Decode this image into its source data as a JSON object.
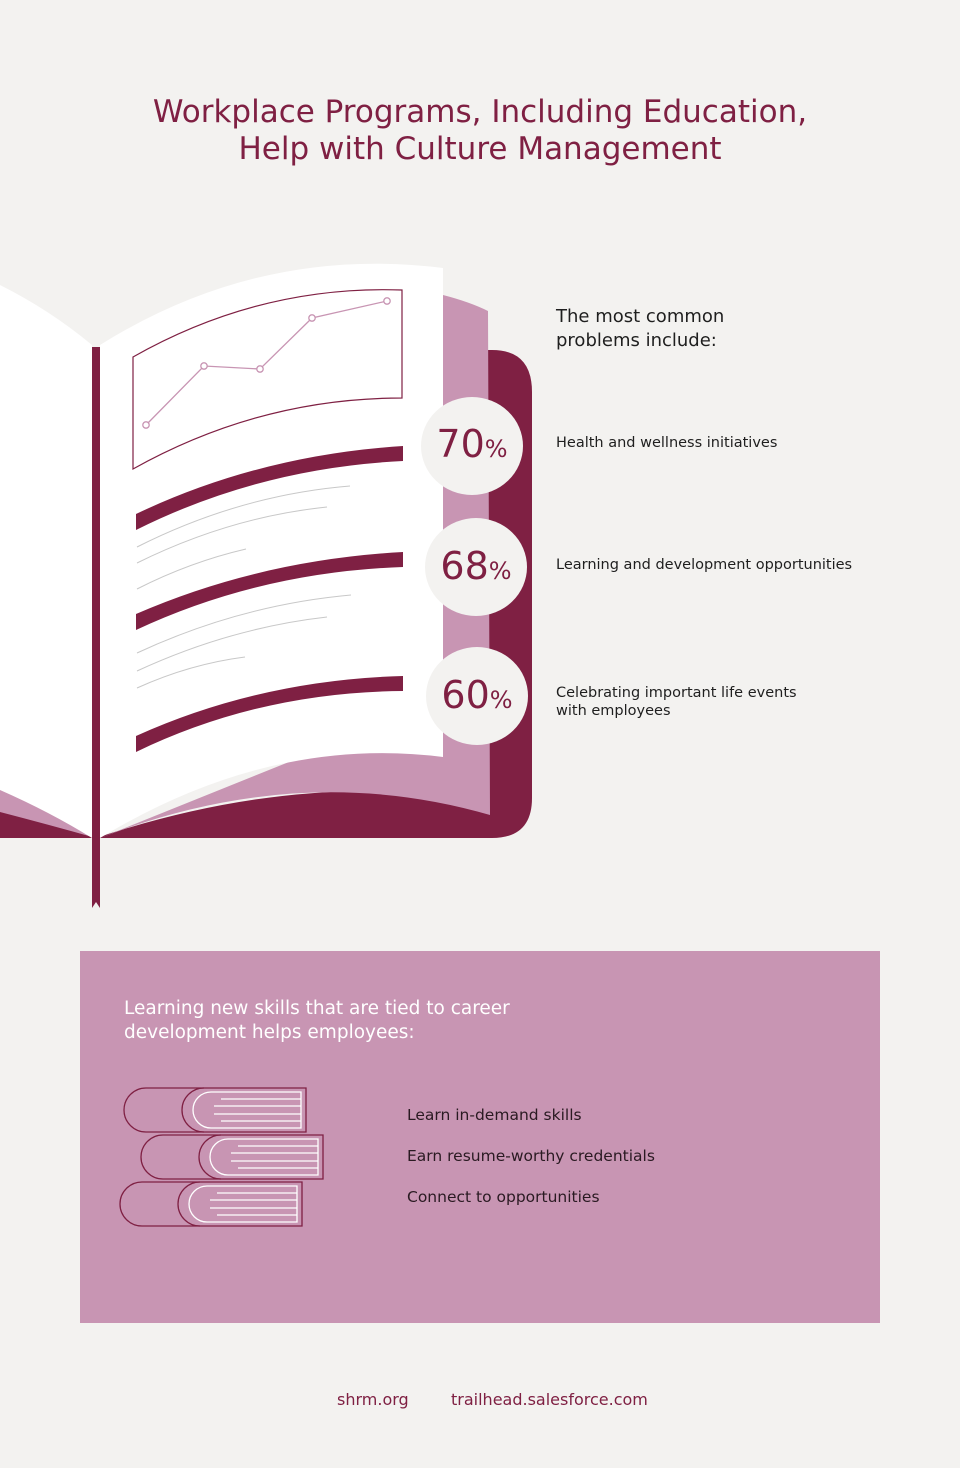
{
  "title": {
    "line1": "Workplace Programs, Including Education,",
    "line2": "Help with Culture Management"
  },
  "colors": {
    "background": "#f3f2f0",
    "maroon": "#7f2043",
    "pink": "#c895b3"
  },
  "problems": {
    "heading_line1": "The most common",
    "heading_line2": "problems include:",
    "items": [
      {
        "value": "70",
        "unit": "%",
        "label": "Health and wellness initiatives"
      },
      {
        "value": "68",
        "unit": "%",
        "label": "Learning and development opportunities"
      },
      {
        "value": "60",
        "unit": "%",
        "label_line1": "Celebrating important life events",
        "label_line2": "with employees"
      }
    ]
  },
  "panel": {
    "heading_line1": "Learning new skills that are tied to career",
    "heading_line2": "development helps employees:",
    "icon": "stacked-books-icon",
    "benefits": [
      "Learn in-demand skills",
      "Earn resume-worthy credentials",
      "Connect to opportunities"
    ]
  },
  "footer": {
    "links": [
      "shrm.org",
      "trailhead.salesforce.com"
    ]
  }
}
